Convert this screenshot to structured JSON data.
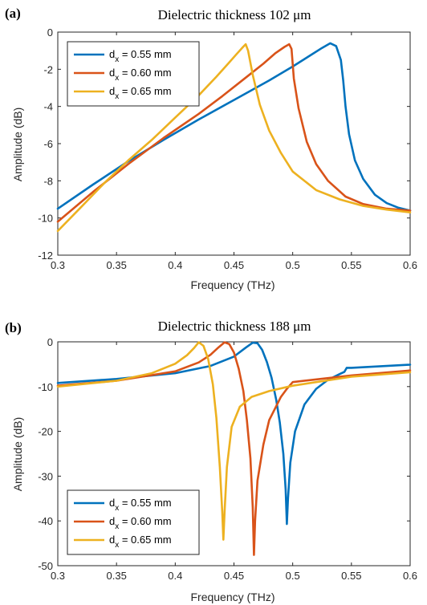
{
  "figure": {
    "panels": [
      {
        "label": "(a)",
        "chart_data": {
          "type": "line",
          "title": "Dielectric thickness 102 μm",
          "xlabel": "Frequency (THz)",
          "ylabel": "Amplitude (dB)",
          "xlim": [
            0.3,
            0.6
          ],
          "ylim": [
            -12,
            0
          ],
          "xticks": [
            0.3,
            0.35,
            0.4,
            0.45,
            0.5,
            0.55,
            0.6
          ],
          "xtick_labels": [
            "0.3",
            "0.35",
            "0.4",
            "0.45",
            "0.5",
            "0.55",
            "0.6"
          ],
          "yticks": [
            -12,
            -10,
            -8,
            -6,
            -4,
            -2,
            0
          ],
          "ytick_labels": [
            "-12",
            "-10",
            "-8",
            "-6",
            "-4",
            "-2",
            "0"
          ],
          "grid": false,
          "legend_position": "top-left",
          "series": [
            {
              "name": "d",
              "name_sub": "x",
              "name_rest": " = 0.55 mm",
              "color": "#0072BD",
              "x": [
                0.3,
                0.33,
                0.36,
                0.39,
                0.42,
                0.45,
                0.48,
                0.5,
                0.515,
                0.525,
                0.532,
                0.537,
                0.541,
                0.543,
                0.545,
                0.548,
                0.553,
                0.56,
                0.57,
                0.58,
                0.59,
                0.6
              ],
              "y": [
                -9.5,
                -8.2,
                -6.95,
                -5.8,
                -4.7,
                -3.65,
                -2.6,
                -1.85,
                -1.25,
                -0.85,
                -0.6,
                -0.75,
                -1.5,
                -2.6,
                -4.0,
                -5.5,
                -6.9,
                -7.9,
                -8.75,
                -9.2,
                -9.45,
                -9.6
              ]
            },
            {
              "name": "d",
              "name_sub": "x",
              "name_rest": " = 0.60 mm",
              "color": "#D95319",
              "x": [
                0.3,
                0.33,
                0.36,
                0.39,
                0.42,
                0.44,
                0.46,
                0.475,
                0.485,
                0.493,
                0.497,
                0.499,
                0.501,
                0.505,
                0.512,
                0.52,
                0.53,
                0.545,
                0.56,
                0.58,
                0.6
              ],
              "y": [
                -10.2,
                -8.6,
                -7.1,
                -5.7,
                -4.4,
                -3.45,
                -2.45,
                -1.7,
                -1.15,
                -0.8,
                -0.65,
                -0.9,
                -2.5,
                -4.1,
                -5.9,
                -7.1,
                -8.0,
                -8.85,
                -9.25,
                -9.5,
                -9.6
              ]
            },
            {
              "name": "d",
              "name_sub": "x",
              "name_rest": " = 0.65 mm",
              "color": "#EDB120",
              "x": [
                0.3,
                0.32,
                0.34,
                0.36,
                0.38,
                0.4,
                0.42,
                0.435,
                0.445,
                0.452,
                0.457,
                0.46,
                0.462,
                0.466,
                0.472,
                0.48,
                0.49,
                0.5,
                0.52,
                0.54,
                0.56,
                0.58,
                0.6
              ],
              "y": [
                -10.7,
                -9.4,
                -8.1,
                -6.9,
                -5.8,
                -4.6,
                -3.4,
                -2.4,
                -1.7,
                -1.2,
                -0.85,
                -0.65,
                -1.0,
                -2.3,
                -3.9,
                -5.3,
                -6.5,
                -7.5,
                -8.5,
                -9.0,
                -9.35,
                -9.55,
                -9.7
              ]
            }
          ]
        }
      },
      {
        "label": "(b)",
        "chart_data": {
          "type": "line",
          "title": "Dielectric thickness 188 μm",
          "xlabel": "Frequency (THz)",
          "ylabel": "Amplitude (dB)",
          "xlim": [
            0.3,
            0.6
          ],
          "ylim": [
            -50,
            0
          ],
          "xticks": [
            0.3,
            0.35,
            0.4,
            0.45,
            0.5,
            0.55,
            0.6
          ],
          "xtick_labels": [
            "0.3",
            "0.35",
            "0.4",
            "0.45",
            "0.5",
            "0.55",
            "0.6"
          ],
          "yticks": [
            -50,
            -40,
            -30,
            -20,
            -10,
            0
          ],
          "ytick_labels": [
            "-50",
            "-40",
            "-30",
            "-20",
            "-10",
            "0"
          ],
          "grid": false,
          "legend_position": "bottom-left",
          "series": [
            {
              "name": "d",
              "name_sub": "x",
              "name_rest": " = 0.55 mm",
              "color": "#0072BD",
              "x": [
                0.3,
                0.35,
                0.4,
                0.43,
                0.45,
                0.46,
                0.466,
                0.47,
                0.474,
                0.478,
                0.482,
                0.486,
                0.489,
                0.492,
                0.494,
                0.495,
                0.496,
                0.498,
                0.502,
                0.51,
                0.52,
                0.53,
                0.54,
                0.544,
                0.546,
                0.55,
                0.6
              ],
              "y": [
                -9.2,
                -8.3,
                -7.0,
                -5.4,
                -3.3,
                -1.3,
                -0.2,
                -0.3,
                -1.8,
                -4.5,
                -8.0,
                -13.0,
                -18.0,
                -25.0,
                -33.0,
                -40.7,
                -35.0,
                -27.0,
                -20.0,
                -14.0,
                -10.5,
                -8.5,
                -7.2,
                -6.7,
                -5.8,
                -5.8,
                -5.1
              ]
            },
            {
              "name": "d",
              "name_sub": "x",
              "name_rest": " = 0.60 mm",
              "color": "#D95319",
              "x": [
                0.3,
                0.35,
                0.4,
                0.42,
                0.43,
                0.437,
                0.442,
                0.446,
                0.45,
                0.454,
                0.458,
                0.461,
                0.464,
                0.466,
                0.467,
                0.468,
                0.47,
                0.475,
                0.48,
                0.49,
                0.495,
                0.5,
                0.55,
                0.6
              ],
              "y": [
                -9.8,
                -8.7,
                -6.6,
                -4.6,
                -2.9,
                -1.2,
                -0.1,
                -0.5,
                -2.4,
                -6.0,
                -11.0,
                -17.5,
                -26.0,
                -37.0,
                -47.6,
                -40.0,
                -31.0,
                -23.0,
                -17.5,
                -12.3,
                -10.5,
                -9.0,
                -7.5,
                -6.4
              ]
            },
            {
              "name": "d",
              "name_sub": "x",
              "name_rest": " = 0.65 mm",
              "color": "#EDB120",
              "x": [
                0.3,
                0.35,
                0.38,
                0.4,
                0.41,
                0.416,
                0.42,
                0.424,
                0.428,
                0.432,
                0.435,
                0.438,
                0.44,
                0.441,
                0.442,
                0.444,
                0.448,
                0.455,
                0.465,
                0.48,
                0.5,
                0.55,
                0.6
              ],
              "y": [
                -10.0,
                -8.7,
                -7.0,
                -4.9,
                -3.0,
                -1.4,
                -0.1,
                -0.9,
                -3.8,
                -9.5,
                -17.0,
                -28.0,
                -38.0,
                -44.2,
                -38.0,
                -28.0,
                -19.0,
                -14.5,
                -12.3,
                -11.0,
                -9.8,
                -7.8,
                -6.8
              ]
            }
          ]
        }
      }
    ]
  }
}
